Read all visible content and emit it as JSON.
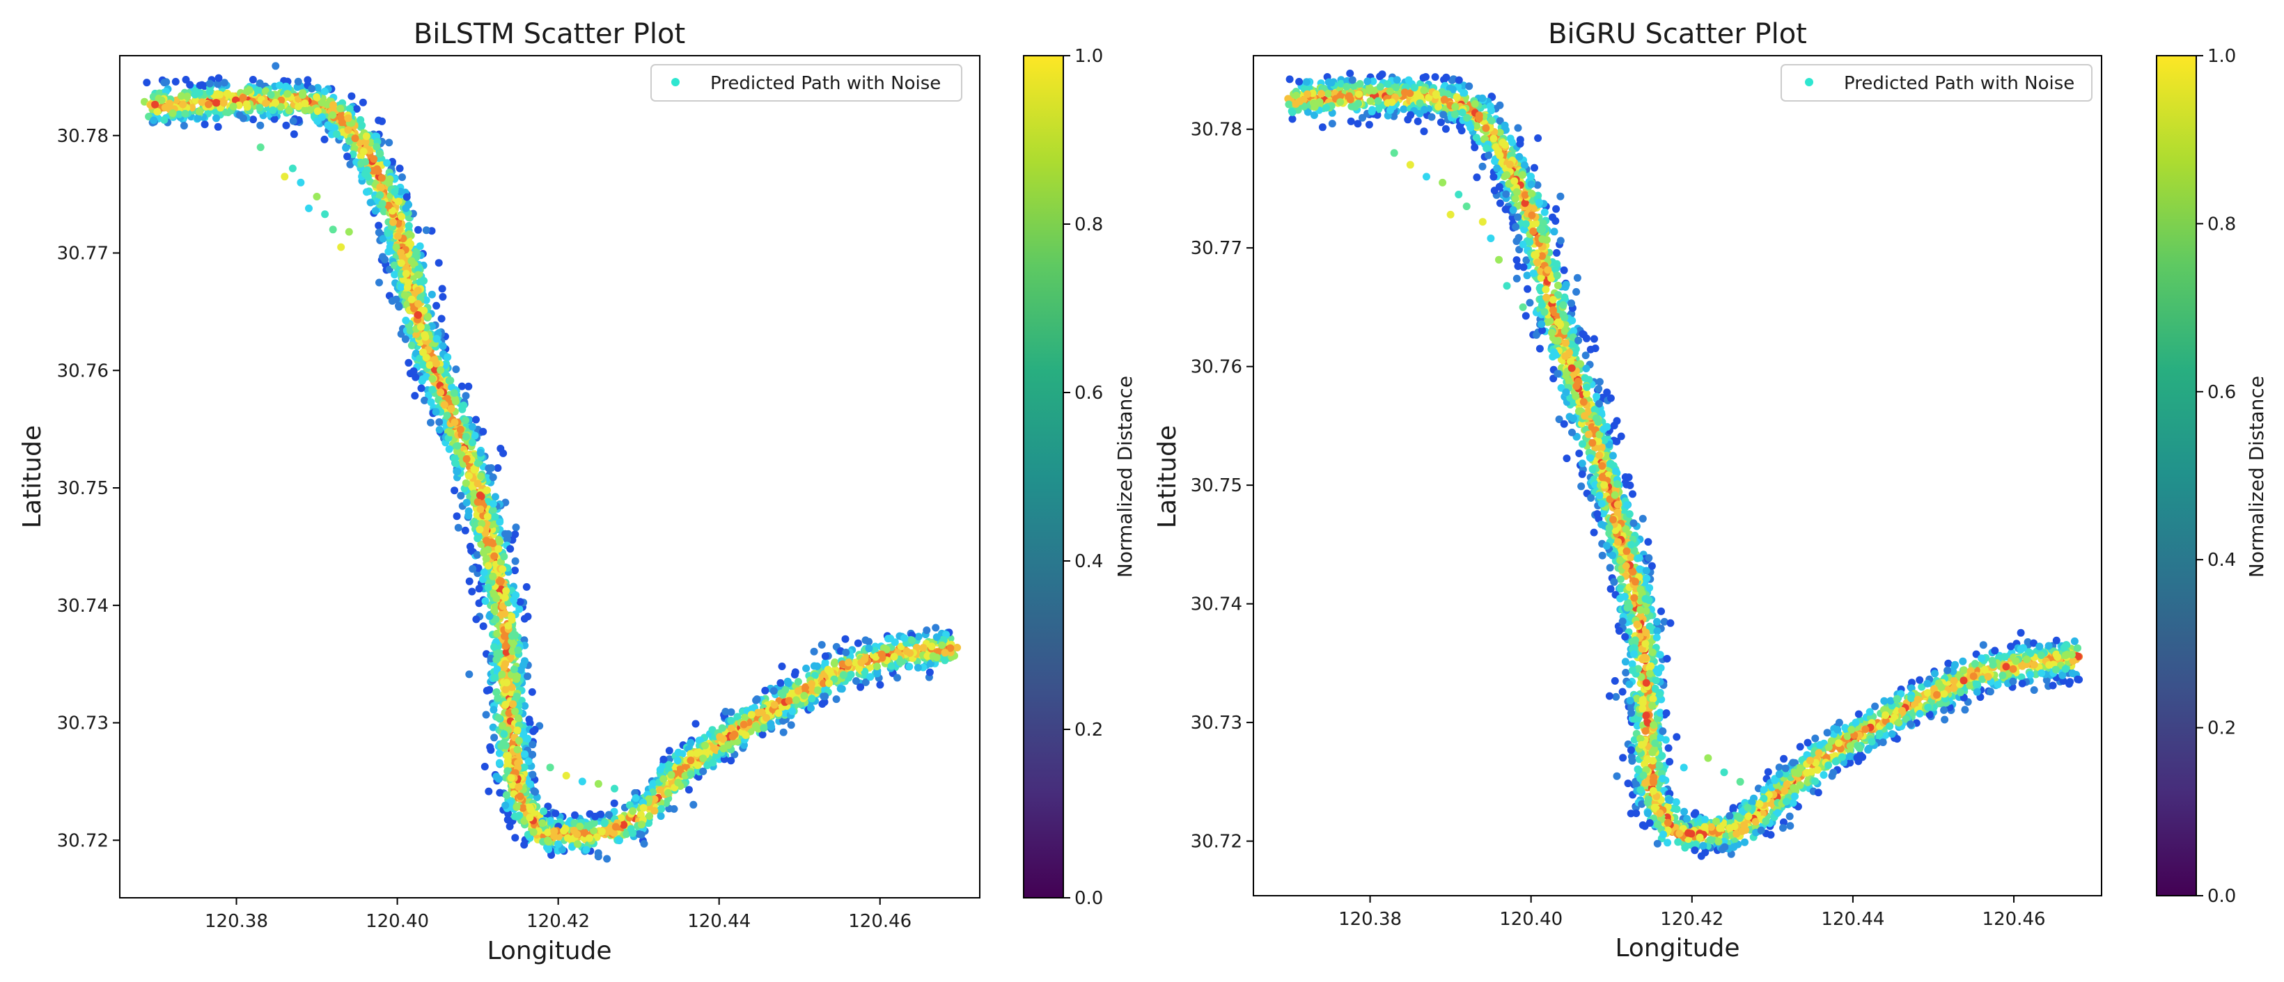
{
  "chart_data": [
    {
      "type": "scatter",
      "title": "BiLSTM Scatter Plot",
      "xlabel": "Longitude",
      "ylabel": "Latitude",
      "xlim": [
        120.3655,
        120.4724
      ],
      "ylim": [
        30.7151,
        30.7868
      ],
      "xticks": [
        120.38,
        120.4,
        120.42,
        120.44,
        120.46
      ],
      "yticks": [
        30.72,
        30.73,
        30.74,
        30.75,
        30.76,
        30.77,
        30.78
      ],
      "legend": {
        "label": "Predicted Path with Noise",
        "position": "upper right"
      },
      "colorbar": {
        "label": "Normalized Distance",
        "colormap": "viridis",
        "range": [
          0.0,
          1.0
        ],
        "ticks": [
          "0.0",
          "0.2",
          "0.4",
          "0.6",
          "0.8",
          "1.0"
        ]
      },
      "path": [
        [
          120.369,
          30.7825
        ],
        [
          120.38,
          30.783
        ],
        [
          120.388,
          30.783
        ],
        [
          120.392,
          30.7822
        ],
        [
          120.396,
          30.779
        ],
        [
          120.4,
          30.773
        ],
        [
          120.403,
          30.763
        ],
        [
          120.407,
          30.756
        ],
        [
          120.41,
          30.75
        ],
        [
          120.412,
          30.744
        ],
        [
          120.4135,
          30.738
        ],
        [
          120.414,
          30.73
        ],
        [
          120.415,
          30.724
        ],
        [
          120.418,
          30.7205
        ],
        [
          120.426,
          30.7205
        ],
        [
          120.431,
          30.7225
        ],
        [
          120.436,
          30.7265
        ],
        [
          120.445,
          30.7305
        ],
        [
          120.455,
          30.7345
        ],
        [
          120.462,
          30.736
        ],
        [
          120.469,
          30.7363
        ]
      ],
      "stray_points": [
        [
          120.383,
          30.779
        ],
        [
          120.386,
          30.7765
        ],
        [
          120.388,
          30.776
        ],
        [
          120.39,
          30.7748
        ],
        [
          120.391,
          30.7733
        ],
        [
          120.392,
          30.772
        ],
        [
          120.393,
          30.7705
        ],
        [
          120.389,
          30.7738
        ],
        [
          120.394,
          30.7718
        ],
        [
          120.387,
          30.7772
        ],
        [
          120.419,
          30.7262
        ],
        [
          120.421,
          30.7255
        ],
        [
          120.423,
          30.725
        ],
        [
          120.425,
          30.7248
        ],
        [
          120.427,
          30.7244
        ]
      ]
    },
    {
      "type": "scatter",
      "title": "BiGRU Scatter Plot",
      "xlabel": "Longitude",
      "ylabel": "Latitude",
      "xlim": [
        120.3655,
        120.4709
      ],
      "ylim": [
        30.7154,
        30.7862
      ],
      "xticks": [
        120.38,
        120.4,
        120.42,
        120.44,
        120.46
      ],
      "yticks": [
        30.72,
        30.73,
        30.74,
        30.75,
        30.76,
        30.77,
        30.78
      ],
      "legend": {
        "label": "Predicted Path with Noise",
        "position": "upper right"
      },
      "colorbar": {
        "label": "Normalized Distance",
        "colormap": "viridis",
        "range": [
          0.0,
          1.0
        ],
        "ticks": [
          "0.0",
          "0.2",
          "0.4",
          "0.6",
          "0.8",
          "1.0"
        ]
      },
      "path": [
        [
          120.37,
          30.7825
        ],
        [
          120.38,
          30.7828
        ],
        [
          120.387,
          30.7828
        ],
        [
          120.392,
          30.782
        ],
        [
          120.396,
          30.779
        ],
        [
          120.4,
          30.773
        ],
        [
          120.403,
          30.764
        ],
        [
          120.407,
          30.756
        ],
        [
          120.41,
          30.749
        ],
        [
          120.4125,
          30.742
        ],
        [
          120.414,
          30.737
        ],
        [
          120.4145,
          30.73
        ],
        [
          120.415,
          30.724
        ],
        [
          120.418,
          30.7205
        ],
        [
          120.426,
          30.721
        ],
        [
          120.431,
          30.724
        ],
        [
          120.437,
          30.7275
        ],
        [
          120.446,
          30.731
        ],
        [
          120.455,
          30.734
        ],
        [
          120.462,
          30.735
        ],
        [
          120.468,
          30.7355
        ]
      ],
      "stray_points": [
        [
          120.383,
          30.778
        ],
        [
          120.385,
          30.777
        ],
        [
          120.387,
          30.776
        ],
        [
          120.389,
          30.7755
        ],
        [
          120.391,
          30.7745
        ],
        [
          120.392,
          30.7735
        ],
        [
          120.394,
          30.7722
        ],
        [
          120.395,
          30.7708
        ],
        [
          120.396,
          30.769
        ],
        [
          120.397,
          30.7668
        ],
        [
          120.399,
          30.765
        ],
        [
          120.39,
          30.7728
        ],
        [
          120.419,
          30.7262
        ],
        [
          120.422,
          30.727
        ],
        [
          120.424,
          30.7258
        ],
        [
          120.426,
          30.725
        ]
      ]
    }
  ]
}
